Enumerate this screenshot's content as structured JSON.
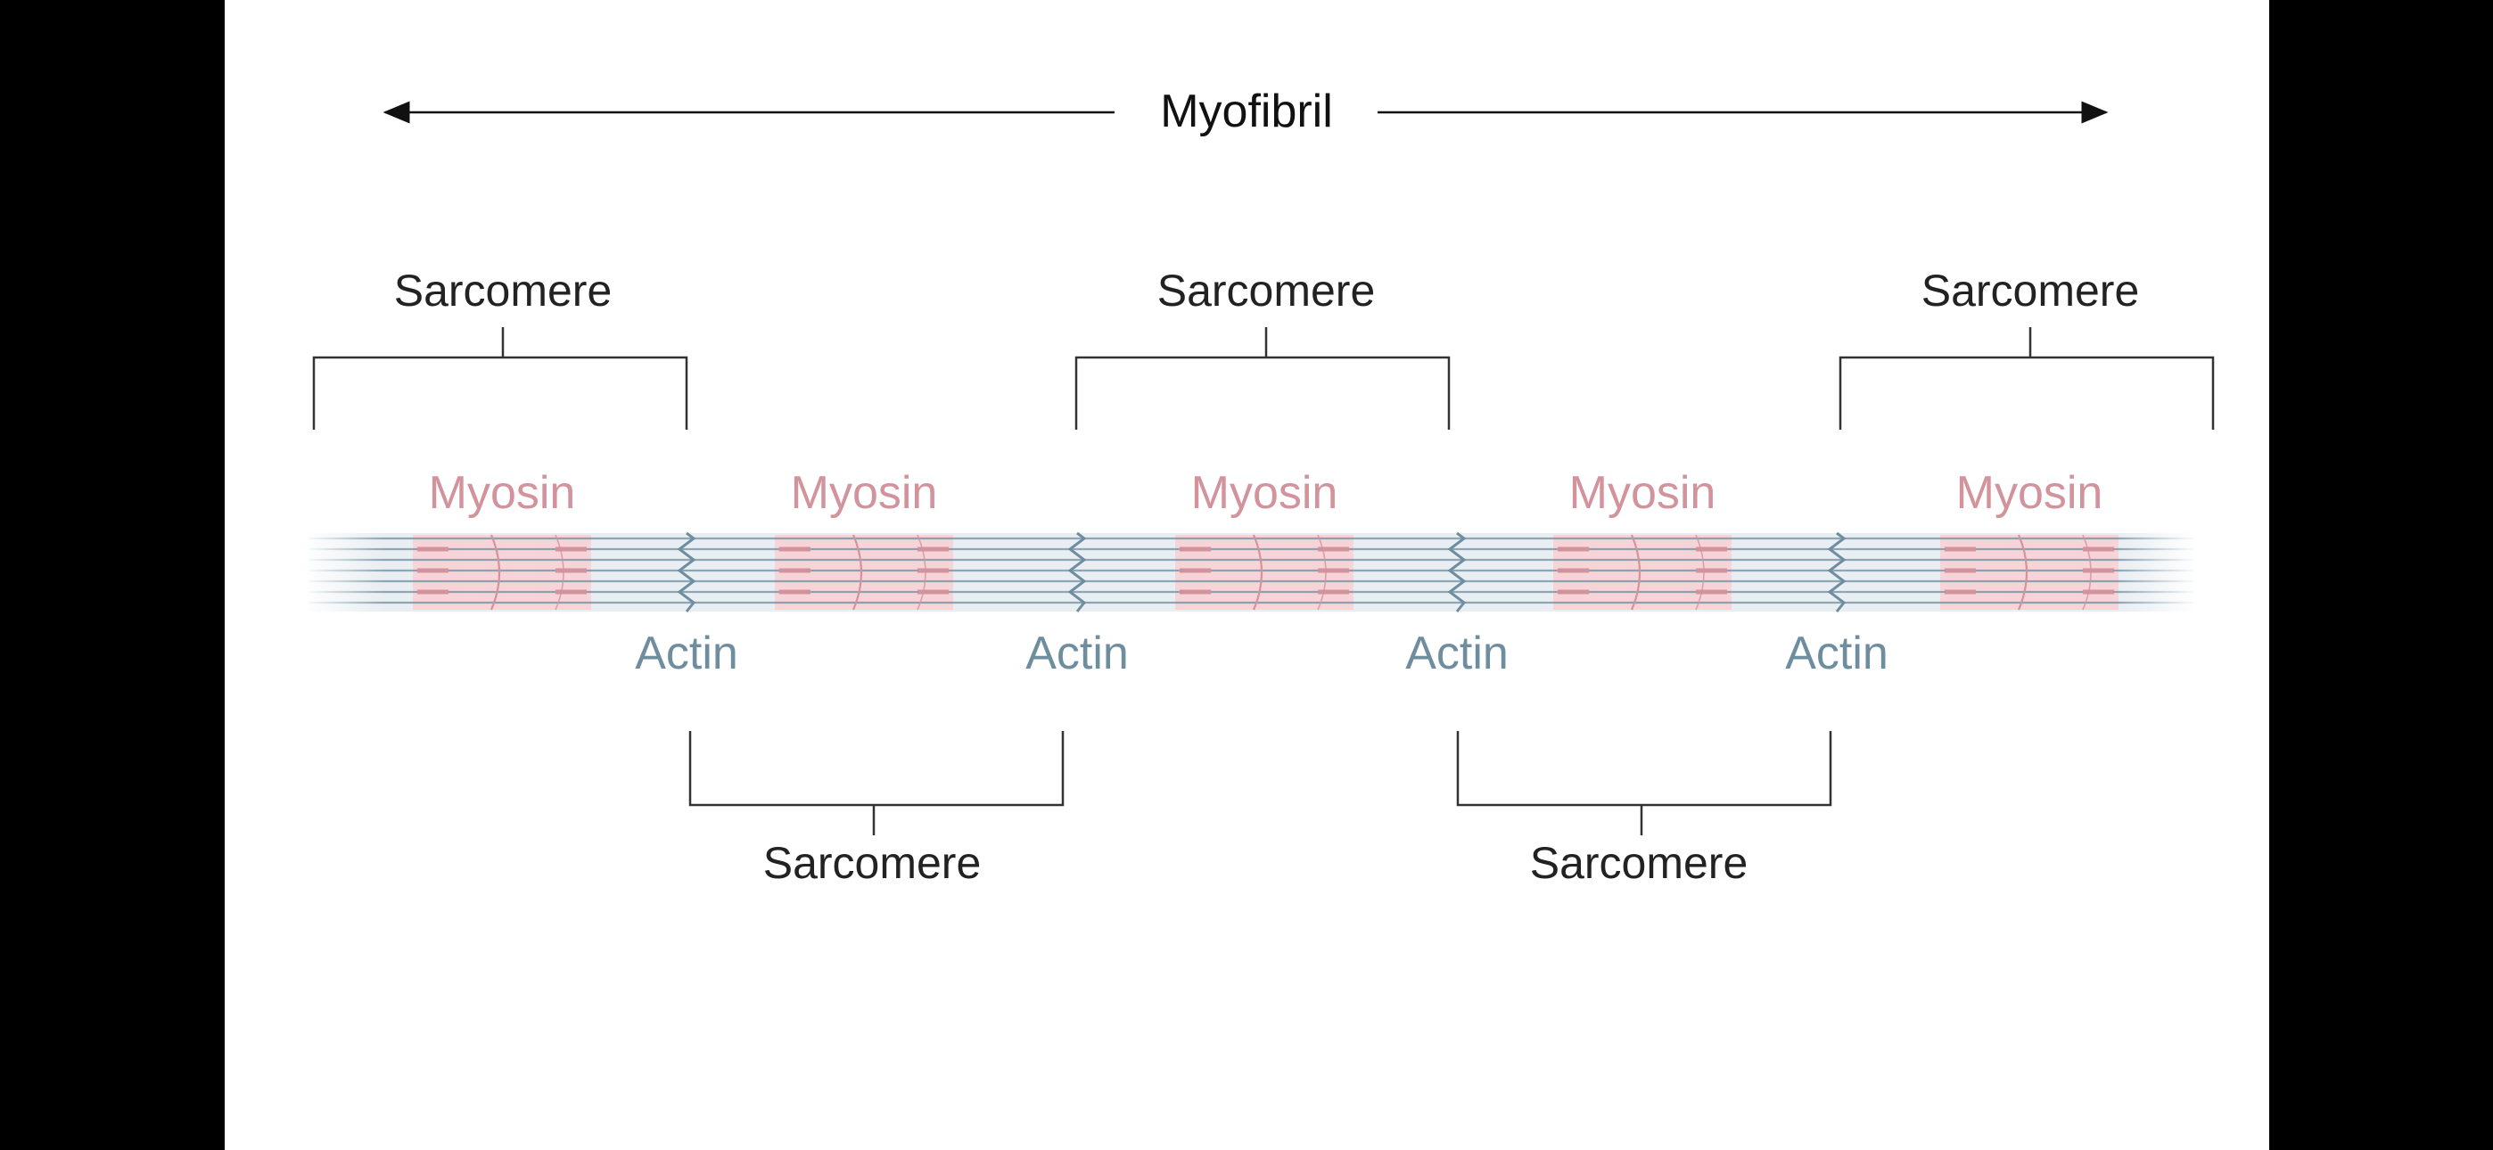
{
  "diagram": {
    "title": "Myofibril",
    "sarcomere_label": "Sarcomere",
    "myosin_label": "Myosin",
    "actin_label": "Actin",
    "colors": {
      "myosin": "#d2939c",
      "myosin_band": "#f7d4d8",
      "actin": "#6e8ea0",
      "actin_band": "#e9eef2",
      "ink": "#111111",
      "slide_background": "#ffffff",
      "frame_background": "#000000"
    },
    "sarcomeres_top_count": 3,
    "sarcomeres_bottom_count": 2,
    "myosin_count": 5,
    "actin_count": 4
  }
}
